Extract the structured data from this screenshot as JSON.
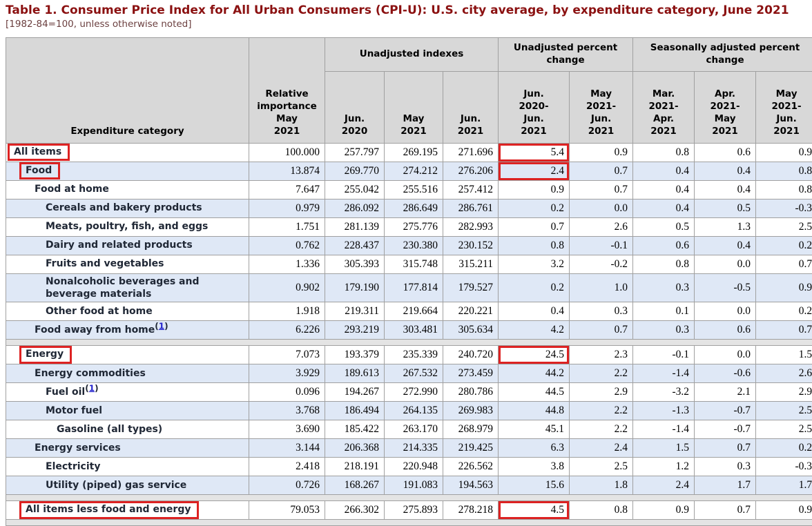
{
  "page": {
    "title": "Table 1. Consumer Price Index for All Urban Consumers (CPI-U): U.S. city average, by expenditure category, June 2021",
    "subtitle": "[1982-84=100, unless otherwise noted]"
  },
  "colors": {
    "title_maroon": "#8b1111",
    "highlight_red": "#dd2222",
    "zebra_blue": "#dfe8f6",
    "header_grey": "#d8d8d8",
    "separator_grey": "#e4e4e4",
    "footnote_link_blue": "#2222cc"
  },
  "chart_data": {
    "type": "table",
    "title": "Table 1. Consumer Price Index for All Urban Consumers (CPI-U): U.S. city average, by expenditure category, June 2021",
    "subtitle": "[1982-84=100, unless otherwise noted]",
    "highlight_color": "#dd2222",
    "columns": {
      "category": "Expenditure category",
      "rel_importance": "Relative\nimportance\nMay\n2021",
      "groups": [
        {
          "label": "Unadjusted indexes",
          "cols": [
            "Jun.\n2020",
            "May\n2021",
            "Jun.\n2021"
          ]
        },
        {
          "label": "Unadjusted percent\nchange",
          "cols": [
            "Jun.\n2020-\nJun.\n2021",
            "May\n2021-\nJun.\n2021"
          ]
        },
        {
          "label": "Seasonally adjusted percent\nchange",
          "cols": [
            "Mar.\n2021-\nApr.\n2021",
            "Apr.\n2021-\nMay\n2021",
            "May\n2021-\nJun.\n2021"
          ]
        }
      ]
    },
    "rows": [
      {
        "label": "All items",
        "indent": 0,
        "highlight_label": true,
        "highlight_value": true,
        "values": [
          "100.000",
          "257.797",
          "269.195",
          "271.696",
          "5.4",
          "0.9",
          "0.8",
          "0.6",
          "0.9"
        ]
      },
      {
        "label": "Food",
        "indent": 1,
        "highlight_label": true,
        "highlight_value": true,
        "values": [
          "13.874",
          "269.770",
          "274.212",
          "276.206",
          "2.4",
          "0.7",
          "0.4",
          "0.4",
          "0.8"
        ]
      },
      {
        "label": "Food at home",
        "indent": 2,
        "values": [
          "7.647",
          "255.042",
          "255.516",
          "257.412",
          "0.9",
          "0.7",
          "0.4",
          "0.4",
          "0.8"
        ]
      },
      {
        "label": "Cereals and bakery products",
        "indent": 3,
        "values": [
          "0.979",
          "286.092",
          "286.649",
          "286.761",
          "0.2",
          "0.0",
          "0.4",
          "0.5",
          "-0.3"
        ]
      },
      {
        "label": "Meats, poultry, fish, and eggs",
        "indent": 3,
        "values": [
          "1.751",
          "281.139",
          "275.776",
          "282.993",
          "0.7",
          "2.6",
          "0.5",
          "1.3",
          "2.5"
        ]
      },
      {
        "label": "Dairy and related products",
        "indent": 3,
        "values": [
          "0.762",
          "228.437",
          "230.380",
          "230.152",
          "0.8",
          "-0.1",
          "0.6",
          "0.4",
          "0.2"
        ]
      },
      {
        "label": "Fruits and vegetables",
        "indent": 3,
        "values": [
          "1.336",
          "305.393",
          "315.748",
          "315.211",
          "3.2",
          "-0.2",
          "0.8",
          "0.0",
          "0.7"
        ]
      },
      {
        "label": "Nonalcoholic beverages and beverage materials",
        "indent": 3,
        "values": [
          "0.902",
          "179.190",
          "177.814",
          "179.527",
          "0.2",
          "1.0",
          "0.3",
          "-0.5",
          "0.9"
        ]
      },
      {
        "label": "Other food at home",
        "indent": 3,
        "values": [
          "1.918",
          "219.311",
          "219.664",
          "220.221",
          "0.4",
          "0.3",
          "0.1",
          "0.0",
          "0.2"
        ]
      },
      {
        "label": "Food away from home",
        "footnote": "1",
        "indent": 2,
        "values": [
          "6.226",
          "293.219",
          "303.481",
          "305.634",
          "4.2",
          "0.7",
          "0.3",
          "0.6",
          "0.7"
        ]
      },
      {
        "separator": true
      },
      {
        "label": "Energy",
        "indent": 1,
        "highlight_label": true,
        "highlight_value": true,
        "values": [
          "7.073",
          "193.379",
          "235.339",
          "240.720",
          "24.5",
          "2.3",
          "-0.1",
          "0.0",
          "1.5"
        ]
      },
      {
        "label": "Energy commodities",
        "indent": 2,
        "values": [
          "3.929",
          "189.613",
          "267.532",
          "273.459",
          "44.2",
          "2.2",
          "-1.4",
          "-0.6",
          "2.6"
        ]
      },
      {
        "label": "Fuel oil",
        "footnote": "1",
        "indent": 3,
        "values": [
          "0.096",
          "194.267",
          "272.990",
          "280.786",
          "44.5",
          "2.9",
          "-3.2",
          "2.1",
          "2.9"
        ]
      },
      {
        "label": "Motor fuel",
        "indent": 3,
        "values": [
          "3.768",
          "186.494",
          "264.135",
          "269.983",
          "44.8",
          "2.2",
          "-1.3",
          "-0.7",
          "2.5"
        ]
      },
      {
        "label": "Gasoline (all types)",
        "indent": 4,
        "values": [
          "3.690",
          "185.422",
          "263.170",
          "268.979",
          "45.1",
          "2.2",
          "-1.4",
          "-0.7",
          "2.5"
        ]
      },
      {
        "label": "Energy services",
        "indent": 2,
        "values": [
          "3.144",
          "206.368",
          "214.335",
          "219.425",
          "6.3",
          "2.4",
          "1.5",
          "0.7",
          "0.2"
        ]
      },
      {
        "label": "Electricity",
        "indent": 3,
        "values": [
          "2.418",
          "218.191",
          "220.948",
          "226.562",
          "3.8",
          "2.5",
          "1.2",
          "0.3",
          "-0.3"
        ]
      },
      {
        "label": "Utility (piped) gas service",
        "indent": 3,
        "values": [
          "0.726",
          "168.267",
          "191.083",
          "194.563",
          "15.6",
          "1.8",
          "2.4",
          "1.7",
          "1.7"
        ]
      },
      {
        "separator": true
      },
      {
        "label": "All items less food and energy",
        "indent": 1,
        "highlight_label": true,
        "highlight_value": true,
        "values": [
          "79.053",
          "266.302",
          "275.893",
          "278.218",
          "4.5",
          "0.8",
          "0.9",
          "0.7",
          "0.9"
        ]
      },
      {
        "separator": true
      }
    ]
  }
}
